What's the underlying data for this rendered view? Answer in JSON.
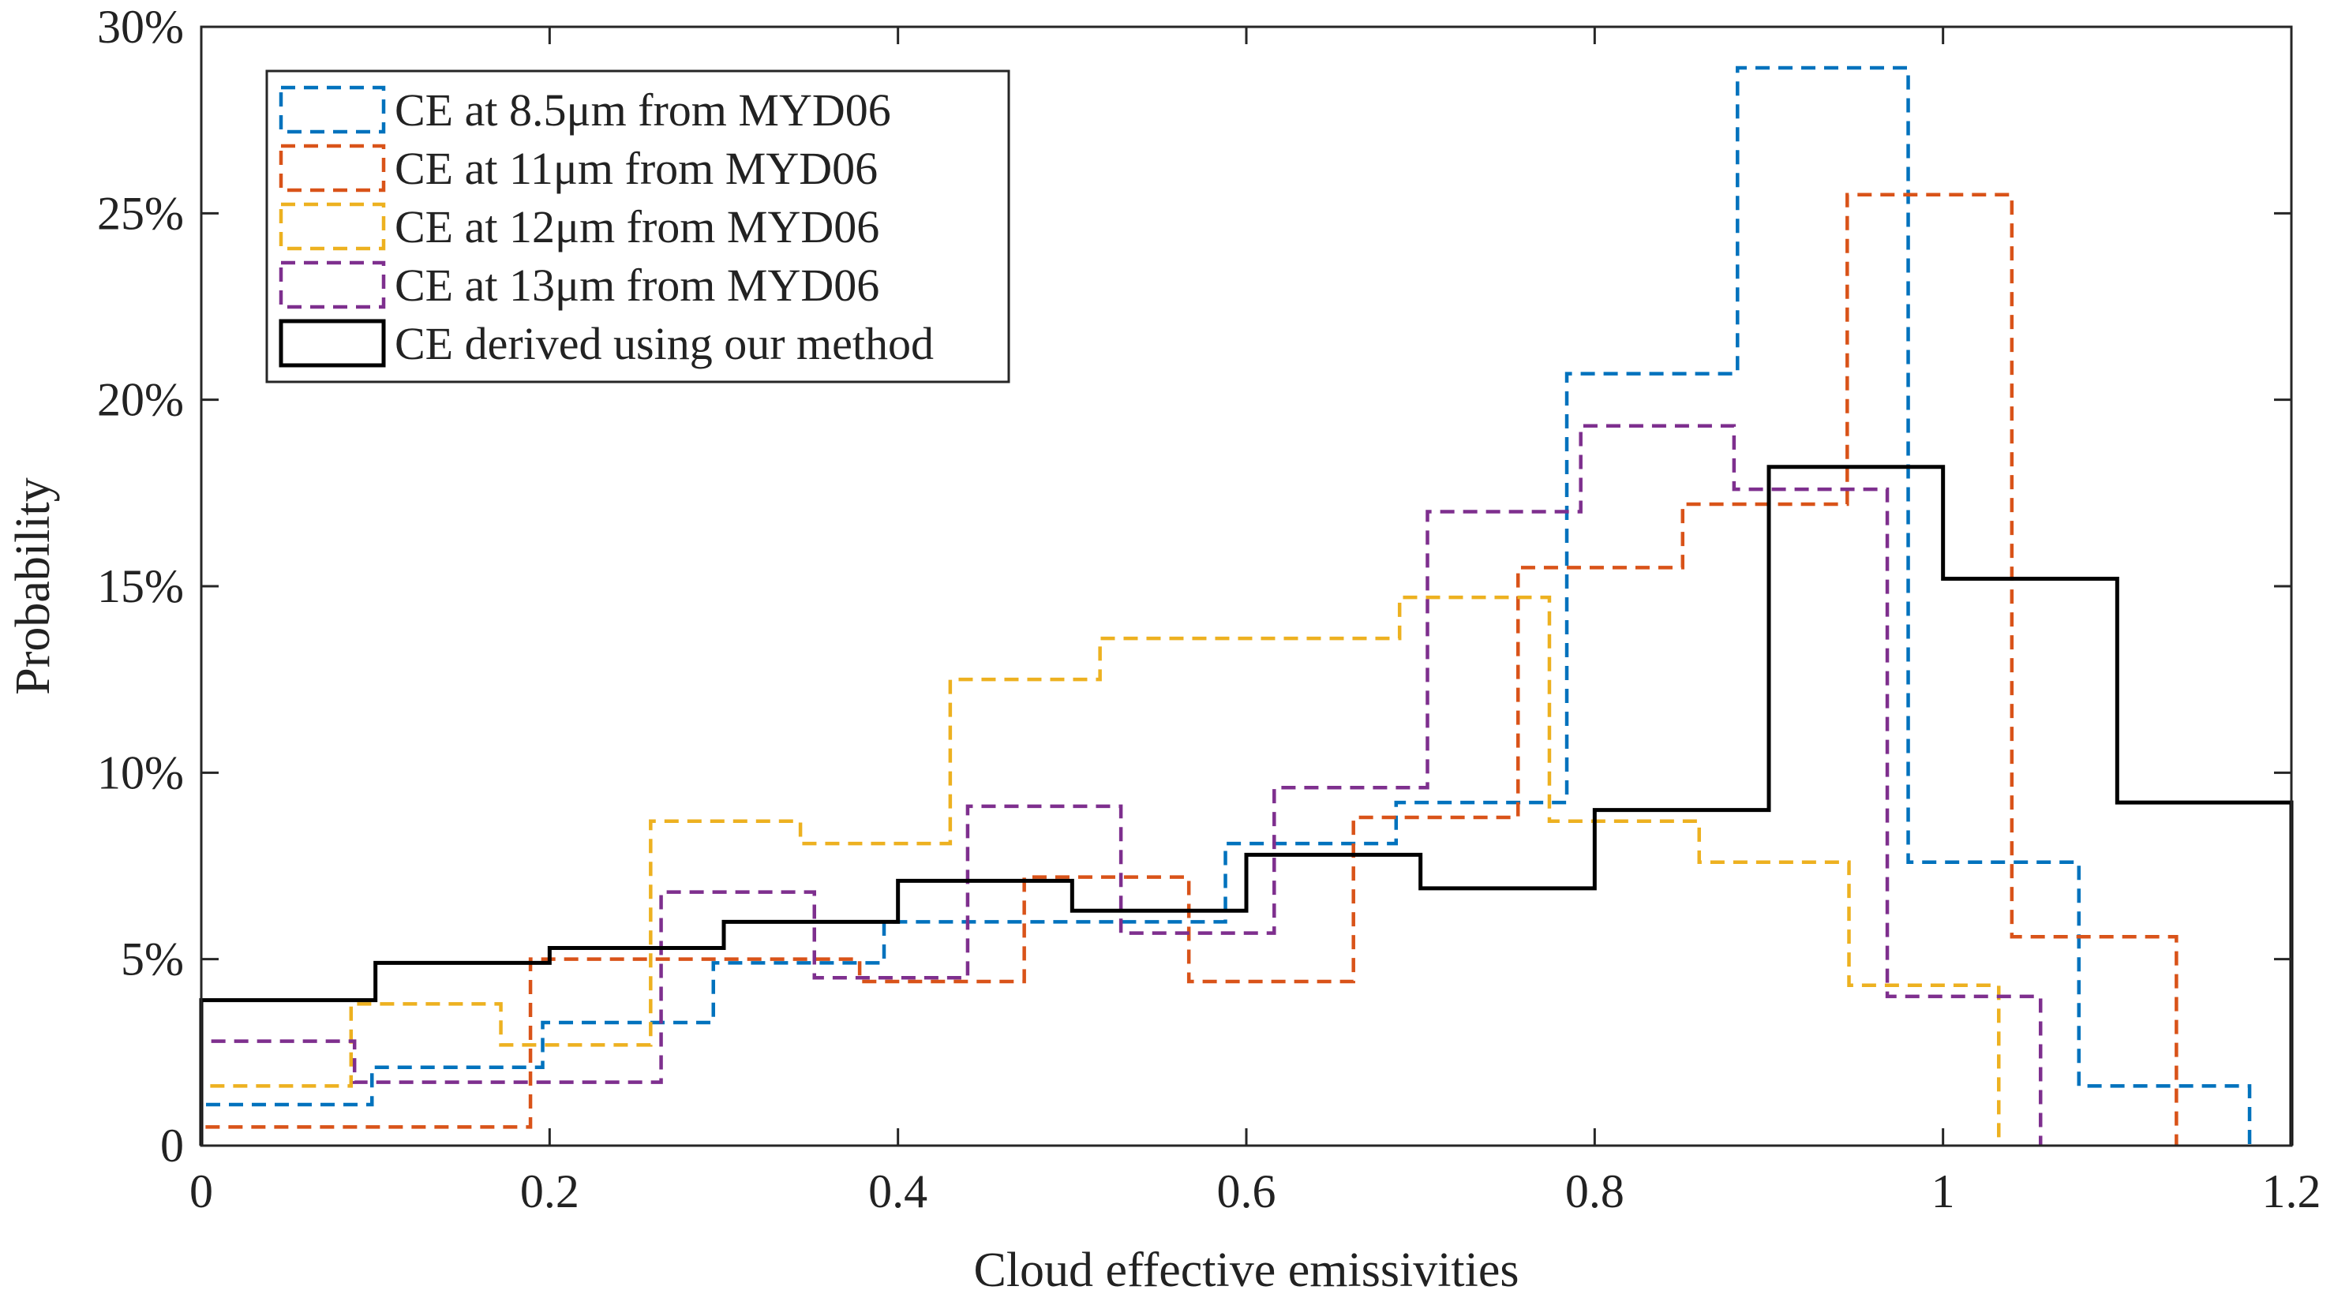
{
  "chart_data": {
    "type": "histogram-step",
    "xlabel": "Cloud effective emissivities",
    "ylabel": "Probability",
    "xlim": [
      0,
      1.2
    ],
    "ylim": [
      0,
      30
    ],
    "x_ticks": [
      {
        "v": 0,
        "label": "0"
      },
      {
        "v": 0.2,
        "label": "0.2"
      },
      {
        "v": 0.4,
        "label": "0.4"
      },
      {
        "v": 0.6,
        "label": "0.6"
      },
      {
        "v": 0.8,
        "label": "0.8"
      },
      {
        "v": 1.0,
        "label": "1"
      },
      {
        "v": 1.2,
        "label": "1.2"
      }
    ],
    "y_ticks": [
      {
        "v": 0,
        "label": "0"
      },
      {
        "v": 5,
        "label": "5%"
      },
      {
        "v": 10,
        "label": "10%"
      },
      {
        "v": 15,
        "label": "15%"
      },
      {
        "v": 20,
        "label": "20%"
      },
      {
        "v": 25,
        "label": "25%"
      },
      {
        "v": 30,
        "label": "30%"
      }
    ],
    "grid": false,
    "legend_position": "top-left",
    "series": [
      {
        "name": "CE at 8.5μm from MYD06",
        "color": "#0072BD",
        "style": "dashed",
        "edges": [
          0,
          0.098,
          0.196,
          0.294,
          0.392,
          0.49,
          0.588,
          0.686,
          0.784,
          0.882,
          0.98,
          1.078,
          1.176
        ],
        "values": [
          1.1,
          2.1,
          3.3,
          4.9,
          6.0,
          6.0,
          8.1,
          9.2,
          20.7,
          28.9,
          7.6,
          1.6
        ]
      },
      {
        "name": "CE at 11μm from MYD06",
        "color": "#D95319",
        "style": "dashed",
        "edges": [
          0,
          0.0945,
          0.189,
          0.2835,
          0.378,
          0.4725,
          0.567,
          0.6615,
          0.756,
          0.8505,
          0.945,
          1.0395,
          1.134
        ],
        "values": [
          0.5,
          0.5,
          5.0,
          5.0,
          4.4,
          7.2,
          4.4,
          8.8,
          15.5,
          17.2,
          25.5,
          5.6
        ]
      },
      {
        "name": "CE at 12μm from MYD06",
        "color": "#EDB120",
        "style": "dashed",
        "edges": [
          0,
          0.086,
          0.172,
          0.258,
          0.344,
          0.43,
          0.516,
          0.602,
          0.688,
          0.774,
          0.86,
          0.946,
          1.032
        ],
        "values": [
          1.6,
          3.8,
          2.7,
          8.7,
          8.1,
          12.5,
          13.6,
          13.6,
          14.7,
          8.7,
          7.6,
          4.3
        ]
      },
      {
        "name": "CE at 13μm from MYD06",
        "color": "#7E2F8E",
        "style": "dashed",
        "edges": [
          0,
          0.088,
          0.176,
          0.264,
          0.352,
          0.44,
          0.528,
          0.616,
          0.704,
          0.792,
          0.88,
          0.968,
          1.056
        ],
        "values": [
          2.8,
          1.7,
          1.7,
          6.8,
          4.5,
          9.1,
          5.7,
          9.6,
          17.0,
          19.3,
          17.6,
          4.0
        ]
      },
      {
        "name": "CE derived using our method",
        "color": "#000000",
        "style": "solid",
        "edges": [
          0,
          0.1,
          0.2,
          0.3,
          0.4,
          0.5,
          0.6,
          0.7,
          0.8,
          0.9,
          1.0,
          1.1,
          1.2
        ],
        "values": [
          3.9,
          4.9,
          5.3,
          6.0,
          7.1,
          6.3,
          7.8,
          6.9,
          9.0,
          18.2,
          15.2,
          9.2
        ]
      }
    ]
  }
}
